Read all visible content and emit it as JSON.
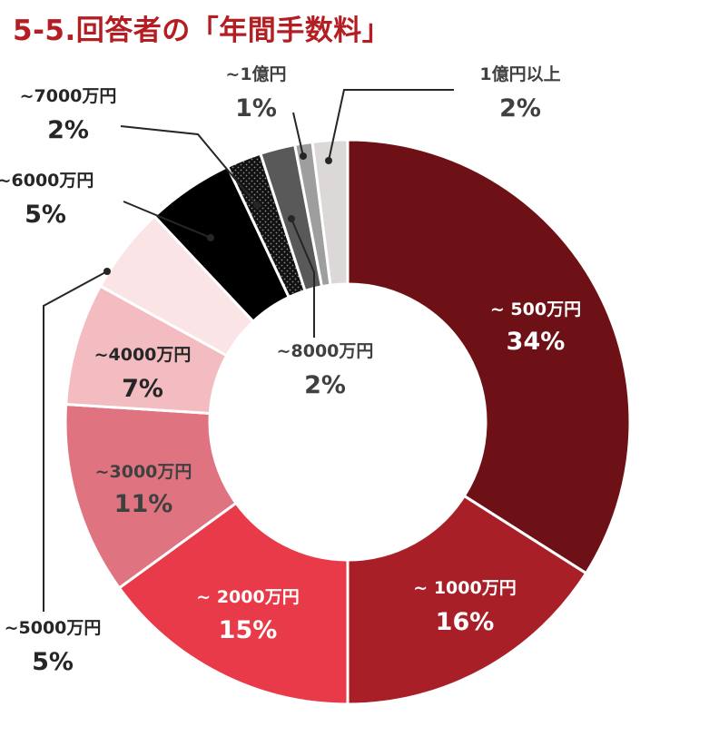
{
  "title": "5-5.回答者の「年間手数料」",
  "chart_data": {
    "type": "pie",
    "style": "donut",
    "direction": "clockwise-from-top",
    "slices": [
      {
        "label": "~ 500万円",
        "pct_label": "34%",
        "value": 34,
        "color": "#6e1117",
        "text_color": "#ffffff"
      },
      {
        "label": "~ 1000万円",
        "pct_label": "16%",
        "value": 16,
        "color": "#a81f27",
        "text_color": "#ffffff"
      },
      {
        "label": "~ 2000万円",
        "pct_label": "15%",
        "value": 15,
        "color": "#e83a48",
        "text_color": "#ffffff"
      },
      {
        "label": "~3000万円",
        "pct_label": "11%",
        "value": 11,
        "color": "#df7480",
        "text_color": "#404040"
      },
      {
        "label": "~4000万円",
        "pct_label": "7%",
        "value": 7,
        "color": "#f2bcc0",
        "text_color": "#262626"
      },
      {
        "label": "~5000万円",
        "pct_label": "5%",
        "value": 5,
        "color": "#fbe4e5",
        "text_color": "#262626"
      },
      {
        "label": "~6000万円",
        "pct_label": "5%",
        "value": 5,
        "color": "#000000",
        "text_color": "#262626"
      },
      {
        "label": "~7000万円",
        "pct_label": "2%",
        "value": 2,
        "color": "#111111",
        "pattern": "dots",
        "text_color": "#262626"
      },
      {
        "label": "~8000万円",
        "pct_label": "2%",
        "value": 2,
        "color": "#595959",
        "text_color": "#404040"
      },
      {
        "label": "~1億円",
        "pct_label": "1%",
        "value": 1,
        "color": "#9e9e9e",
        "text_color": "#404040"
      },
      {
        "label": "1億円以上",
        "pct_label": "2%",
        "value": 2,
        "color": "#dcd8d8",
        "text_color": "#404040"
      }
    ]
  }
}
